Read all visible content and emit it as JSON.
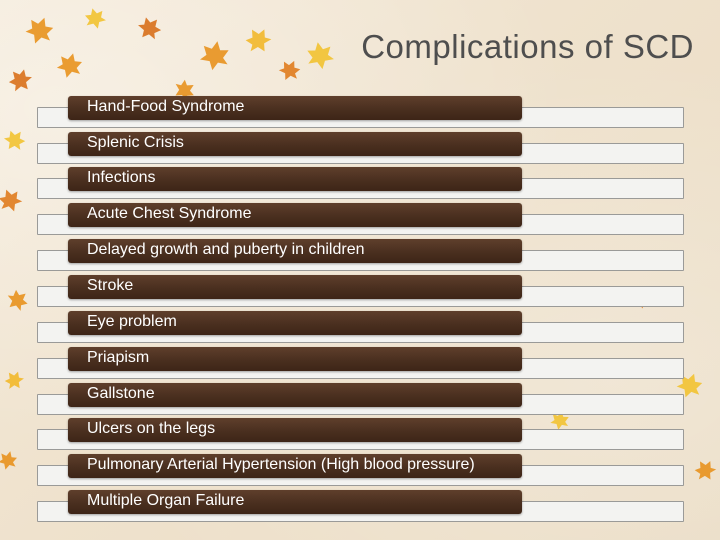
{
  "slide": {
    "title": "Complications of SCD",
    "items": [
      {
        "label": "Hand-Food Syndrome"
      },
      {
        "label": "Splenic Crisis"
      },
      {
        "label": "Infections"
      },
      {
        "label": "Acute Chest Syndrome"
      },
      {
        "label": "Delayed growth and puberty in children"
      },
      {
        "label": "Stroke"
      },
      {
        "label": "Eye problem"
      },
      {
        "label": "Priapism"
      },
      {
        "label": "Gallstone"
      },
      {
        "label": "Ulcers on the legs"
      },
      {
        "label": "Pulmonary Arterial Hypertension (High blood pressure)"
      },
      {
        "label": "Multiple Organ Failure"
      }
    ]
  },
  "colors": {
    "bar": "#4a2f1f",
    "title": "#4e4e4e",
    "leaf_orange": "#e8921e",
    "leaf_yellow": "#f2c230"
  }
}
